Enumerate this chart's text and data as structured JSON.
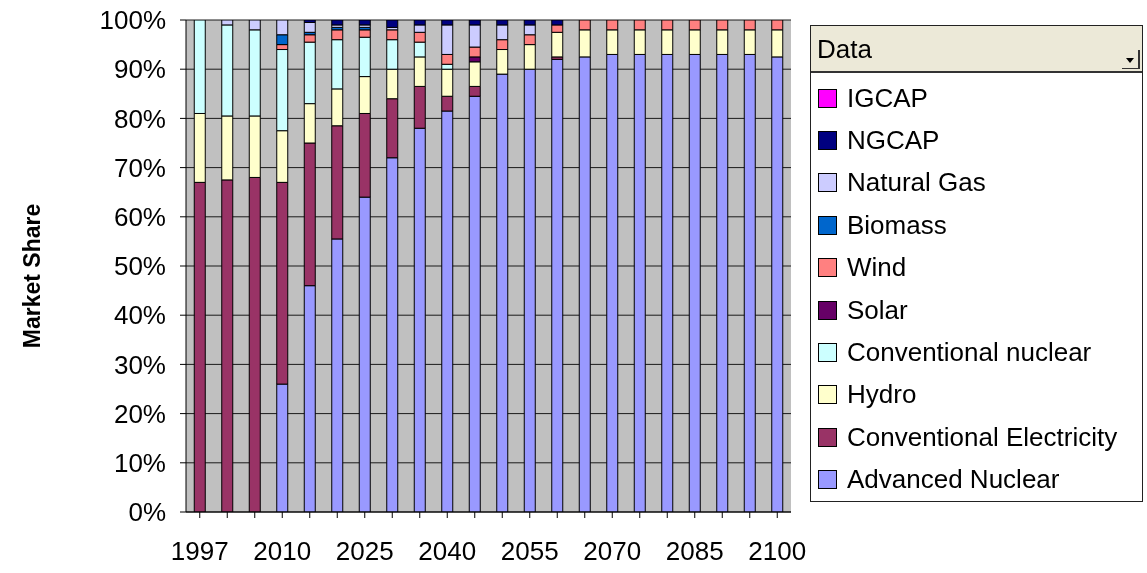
{
  "chart_data": {
    "type": "bar",
    "stacked": true,
    "ylabel": "Market Share",
    "legend_title": "Data",
    "legend": "right",
    "grid": "y",
    "categories": [
      "1997",
      null,
      null,
      "2010",
      null,
      null,
      "2025",
      null,
      null,
      "2040",
      null,
      null,
      "2055",
      null,
      null,
      "2070",
      null,
      null,
      "2085",
      null,
      null,
      "2100"
    ],
    "ylim": [
      0,
      100
    ],
    "yticks": [
      {
        "value": 0,
        "label": "0%"
      },
      {
        "value": 10,
        "label": "10%"
      },
      {
        "value": 20,
        "label": "20%"
      },
      {
        "value": 30,
        "label": "30%"
      },
      {
        "value": 40,
        "label": "40%"
      },
      {
        "value": 50,
        "label": "50%"
      },
      {
        "value": 60,
        "label": "60%"
      },
      {
        "value": 70,
        "label": "70%"
      },
      {
        "value": 80,
        "label": "80%"
      },
      {
        "value": 90,
        "label": "90%"
      },
      {
        "value": 100,
        "label": "100%"
      }
    ],
    "series": [
      {
        "name": "Advanced Nuclear",
        "color": "#9999ff",
        "values": [
          0,
          0,
          0,
          26,
          46,
          55.5,
          64,
          72,
          78,
          81.5,
          84.5,
          89,
          90,
          92,
          92.5,
          93,
          93,
          93,
          93,
          93,
          93,
          92.5
        ]
      },
      {
        "name": "Conventional Electricity",
        "color": "#993366",
        "values": [
          67,
          67.5,
          68,
          41,
          29,
          23,
          17,
          12,
          8.5,
          3,
          2,
          0,
          0,
          0.5,
          0,
          0,
          0,
          0,
          0,
          0,
          0,
          0
        ]
      },
      {
        "name": "Hydro",
        "color": "#ffffcc",
        "values": [
          14,
          13,
          12.5,
          10.5,
          8,
          7.5,
          7.5,
          6,
          6,
          5.5,
          5,
          5,
          5,
          5,
          5.5,
          5,
          5,
          5,
          5,
          5,
          5,
          5.5
        ]
      },
      {
        "name": "Conventional nuclear",
        "color": "#ccffff",
        "values": [
          19,
          18.5,
          17.5,
          16.5,
          12.5,
          10,
          8,
          6,
          3,
          1,
          0,
          0,
          0,
          0,
          0,
          0,
          0,
          0,
          0,
          0,
          0,
          0
        ]
      },
      {
        "name": "Solar",
        "color": "#660066",
        "values": [
          0,
          0,
          0,
          0,
          0,
          0,
          0,
          0,
          0,
          0,
          1,
          0,
          0,
          0,
          0,
          0,
          0,
          0,
          0,
          0,
          0,
          0
        ]
      },
      {
        "name": "Wind",
        "color": "#ff8080",
        "values": [
          0,
          0,
          0,
          1,
          1.5,
          2,
          1.5,
          2,
          2,
          2,
          2,
          2,
          2,
          1.5,
          2,
          2,
          2,
          2,
          2,
          2,
          2,
          2
        ]
      },
      {
        "name": "Biomass",
        "color": "#0066cc",
        "values": [
          0,
          0,
          0,
          2,
          0.5,
          0.5,
          0.5,
          0,
          0,
          0,
          0,
          0,
          0,
          0,
          0,
          0,
          0,
          0,
          0,
          0,
          0,
          0
        ]
      },
      {
        "name": "Natural Gas",
        "color": "#ccccff",
        "values": [
          0,
          1,
          2,
          3,
          2,
          0.5,
          0.5,
          0.5,
          1.5,
          6,
          4.5,
          3,
          2,
          0,
          0,
          0,
          0,
          0,
          0,
          0,
          0,
          0
        ]
      },
      {
        "name": "NGCAP",
        "color": "#000080",
        "values": [
          0,
          0,
          0,
          0,
          0.5,
          1,
          1,
          1.5,
          1,
          1,
          1,
          1,
          1,
          1,
          0,
          0,
          0,
          0,
          0,
          0,
          0,
          0
        ]
      },
      {
        "name": "IGCAP",
        "color": "#ff00ff",
        "values": [
          0,
          0,
          0,
          0,
          0,
          0,
          0,
          0,
          0,
          0,
          0,
          0,
          0,
          0,
          0,
          0,
          0,
          0,
          0,
          0,
          0,
          0
        ]
      }
    ]
  }
}
